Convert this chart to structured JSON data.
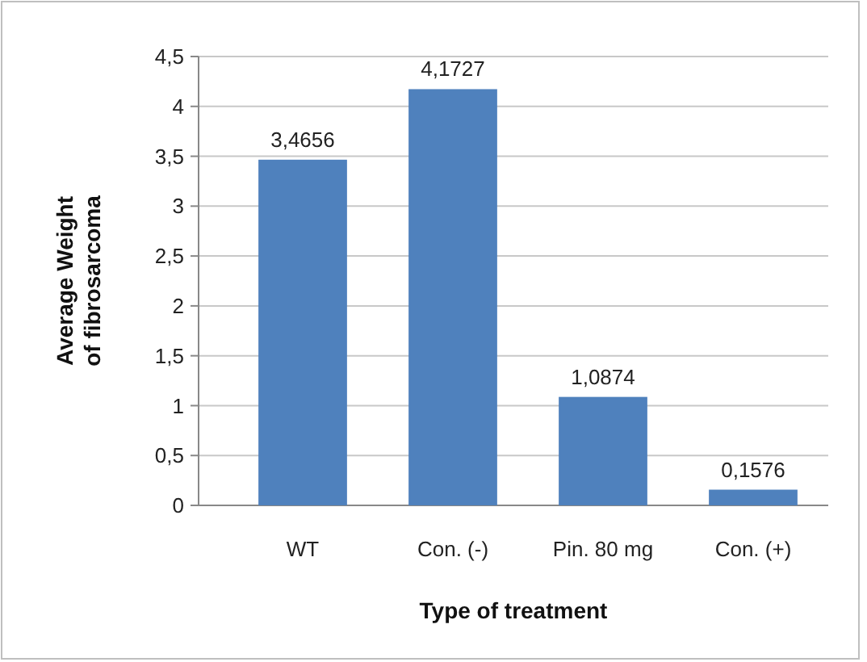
{
  "chart_data": {
    "type": "bar",
    "xlabel": "Type of treatment",
    "ylabel": "Average Weight of fibrosarcoma",
    "categories": [
      "WT",
      "Con. (-)",
      "Pin. 80 mg",
      "Con. (+)"
    ],
    "values": [
      3.4656,
      4.1727,
      1.0874,
      0.1576
    ],
    "value_labels": [
      "3,4656",
      "4,1727",
      "1,0874",
      "0,1576"
    ],
    "color": "#4f81bd",
    "ylim": [
      0,
      4.5
    ],
    "yticks": [
      0,
      {
        "value": 0.5,
        "label": "0,5"
      },
      1,
      {
        "value": 1.5,
        "label": "1,5"
      },
      2,
      {
        "value": 2.5,
        "label": "2,5"
      },
      3,
      {
        "value": 3.5,
        "label": "3,5"
      },
      4,
      {
        "value": 4.5,
        "label": "4,5"
      }
    ],
    "grid": "y"
  }
}
